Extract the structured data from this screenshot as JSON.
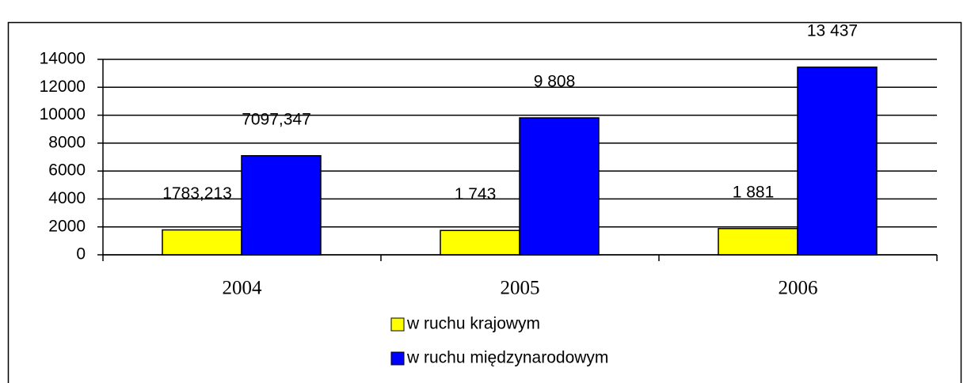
{
  "chart_data": {
    "type": "bar",
    "categories": [
      "2004",
      "2005",
      "2006"
    ],
    "series": [
      {
        "name": "w ruchu krajowym",
        "color": "#ffff00",
        "values": [
          1783.213,
          1743,
          1881
        ],
        "value_labels": [
          "1783,213",
          "1 743",
          "1 881"
        ]
      },
      {
        "name": "w ruchu międzynarodowym",
        "color": "#0000ff",
        "values": [
          7097.347,
          9808,
          13437
        ],
        "value_labels": [
          "7097,347",
          "9 808",
          "13 437"
        ]
      }
    ],
    "ylim": [
      0,
      14000
    ],
    "yticks": [
      0,
      2000,
      4000,
      6000,
      8000,
      10000,
      12000,
      14000
    ],
    "grid": true
  }
}
